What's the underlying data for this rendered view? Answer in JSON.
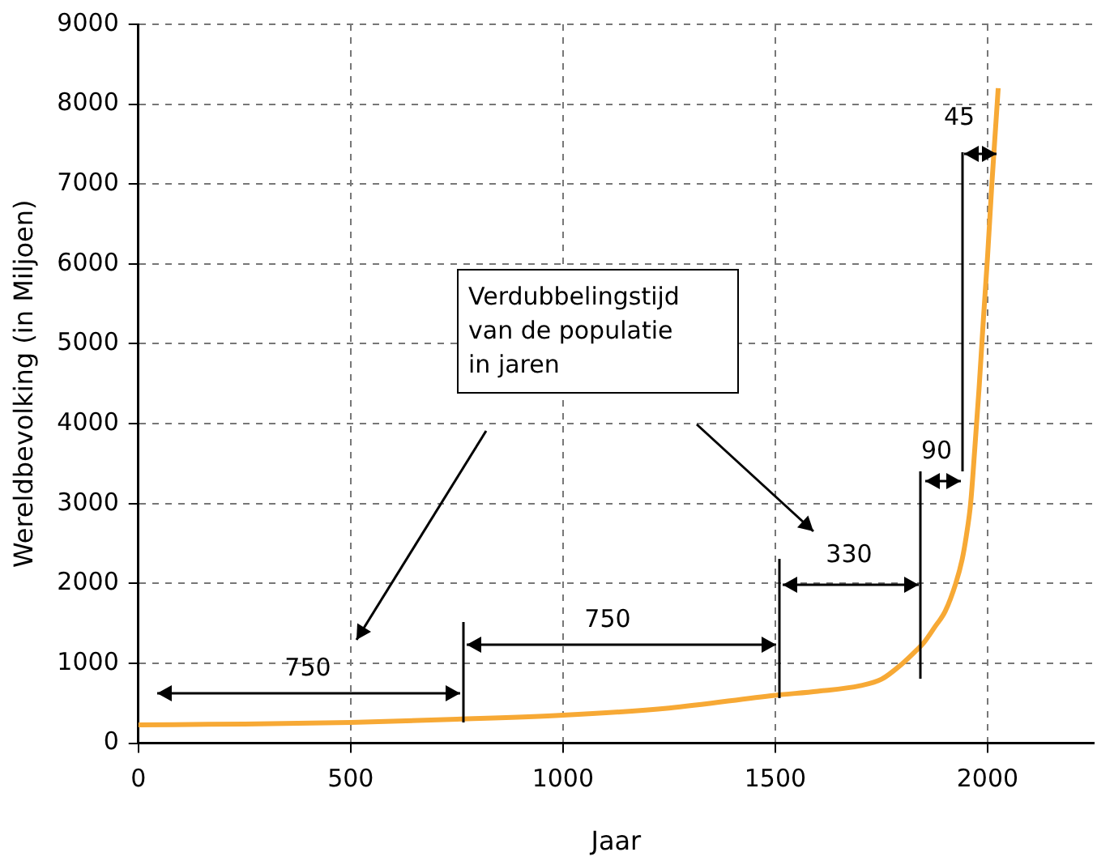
{
  "chart_data": {
    "type": "line",
    "xlabel": "Jaar",
    "ylabel": "Wereldbevolking (in Miljoen)",
    "x": [
      0,
      250,
      500,
      750,
      1000,
      1250,
      1500,
      1600,
      1700,
      1750,
      1800,
      1830,
      1850,
      1875,
      1900,
      1925,
      1940,
      1950,
      1960,
      1970,
      1980,
      1990,
      2000,
      2010,
      2020,
      2025
    ],
    "series": [
      {
        "color": "#f7a935",
        "values": [
          230,
          240,
          260,
          300,
          350,
          440,
          600,
          650,
          720,
          800,
          1000,
          1150,
          1260,
          1450,
          1650,
          2000,
          2300,
          2600,
          3000,
          3700,
          4450,
          5300,
          6100,
          7000,
          7800,
          8200
        ]
      }
    ],
    "xlim": [
      0,
      2250
    ],
    "xticks": [
      0,
      500,
      1000,
      1500,
      2000
    ],
    "ylim": [
      0,
      9000
    ],
    "yticks": [
      0,
      1000,
      2000,
      3000,
      4000,
      5000,
      6000,
      7000,
      8000,
      9000
    ],
    "grid": true,
    "legend": false,
    "marker": "none",
    "line_style": "solid",
    "annotations": [
      "Verdubbelingstijd\nvan de populatie\nin jaren",
      "750",
      "750",
      "330",
      "90",
      "45"
    ]
  }
}
